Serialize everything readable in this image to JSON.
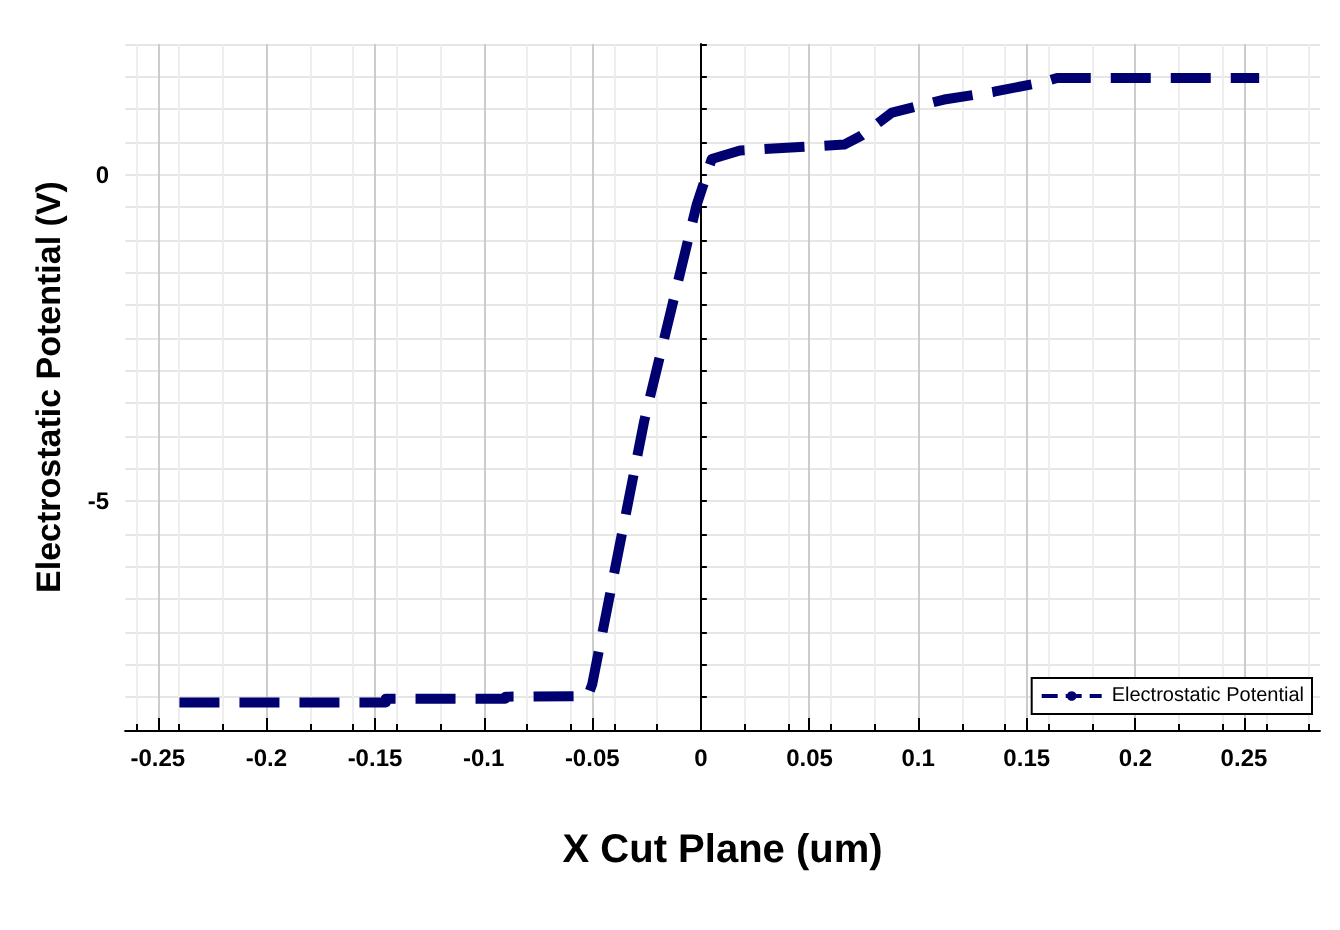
{
  "chart_data": {
    "type": "line",
    "xlabel": "X Cut Plane (um)",
    "ylabel": "Electrostatic Potential (V)",
    "series": [
      {
        "name": "Electrostatic Potential",
        "color": "#000070",
        "x": [
          -0.24,
          -0.145,
          -0.145,
          -0.09,
          -0.09,
          -0.052,
          -0.05,
          -0.026,
          -0.002,
          0.005,
          0.018,
          0.066,
          0.074,
          0.088,
          0.112,
          0.135,
          0.158,
          0.164,
          0.257
        ],
        "values": [
          -8.08,
          -8.08,
          -8.02,
          -8.02,
          -7.99,
          -7.98,
          -7.8,
          -3.76,
          -0.47,
          0.24,
          0.37,
          0.46,
          0.6,
          0.95,
          1.15,
          1.27,
          1.42,
          1.48,
          1.48
        ]
      }
    ],
    "xlim": [
      -0.265,
      0.285
    ],
    "xticks": [
      -0.25,
      -0.2,
      -0.15,
      -0.1,
      -0.05,
      0,
      0.05,
      0.1,
      0.15,
      0.2,
      0.25
    ],
    "ylim": [
      -8.5,
      2
    ],
    "yticks": [
      -5,
      0
    ],
    "grid": true,
    "legend": "bottom right",
    "line_style": "dashed",
    "marker": "none"
  }
}
